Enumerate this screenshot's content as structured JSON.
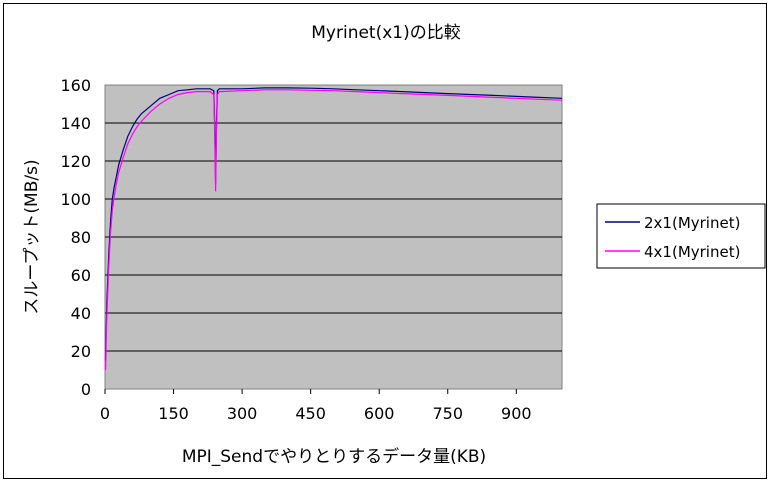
{
  "chart_data": {
    "type": "line",
    "title": "Myrinet(x1)の比較",
    "xlabel": "MPI_Sendでやりとりするデータ量(KB)",
    "ylabel": "スループット(MB/s)",
    "xlim": [
      0,
      1000
    ],
    "ylim": [
      0,
      160
    ],
    "x_ticks": [
      0,
      150,
      300,
      450,
      600,
      750,
      900
    ],
    "y_ticks": [
      0,
      20,
      40,
      60,
      80,
      100,
      120,
      140,
      160
    ],
    "grid": "horizontal",
    "plot_background": "#c0c0c0",
    "legend_position": "right",
    "series": [
      {
        "name": "2x1(Myrinet)",
        "color": "#000080",
        "points": [
          [
            1,
            15
          ],
          [
            4,
            45
          ],
          [
            8,
            70
          ],
          [
            12,
            88
          ],
          [
            16,
            100
          ],
          [
            20,
            106
          ],
          [
            25,
            112
          ],
          [
            30,
            118
          ],
          [
            40,
            126
          ],
          [
            50,
            133
          ],
          [
            60,
            138
          ],
          [
            70,
            142
          ],
          [
            80,
            145
          ],
          [
            100,
            149
          ],
          [
            120,
            153
          ],
          [
            140,
            155
          ],
          [
            160,
            157
          ],
          [
            180,
            157.5
          ],
          [
            200,
            158
          ],
          [
            230,
            158
          ],
          [
            238,
            157
          ],
          [
            240,
            140
          ],
          [
            242,
            108
          ],
          [
            244,
            140
          ],
          [
            246,
            157
          ],
          [
            250,
            158
          ],
          [
            300,
            158
          ],
          [
            350,
            158.5
          ],
          [
            400,
            158.5
          ],
          [
            450,
            158.3
          ],
          [
            500,
            158
          ],
          [
            550,
            157.5
          ],
          [
            600,
            157
          ],
          [
            650,
            156.5
          ],
          [
            700,
            156
          ],
          [
            750,
            155.5
          ],
          [
            800,
            155
          ],
          [
            850,
            154.5
          ],
          [
            900,
            154
          ],
          [
            950,
            153.5
          ],
          [
            1000,
            153
          ]
        ]
      },
      {
        "name": "4x1(Myrinet)",
        "color": "#ff00ff",
        "points": [
          [
            1,
            10
          ],
          [
            4,
            38
          ],
          [
            8,
            64
          ],
          [
            12,
            82
          ],
          [
            16,
            94
          ],
          [
            20,
            101
          ],
          [
            25,
            108
          ],
          [
            30,
            114
          ],
          [
            40,
            122
          ],
          [
            50,
            129
          ],
          [
            60,
            134
          ],
          [
            70,
            138
          ],
          [
            80,
            141
          ],
          [
            100,
            146
          ],
          [
            120,
            150
          ],
          [
            140,
            153
          ],
          [
            160,
            155
          ],
          [
            180,
            156
          ],
          [
            200,
            156.5
          ],
          [
            230,
            156.5
          ],
          [
            238,
            155
          ],
          [
            240,
            135
          ],
          [
            242,
            104
          ],
          [
            244,
            135
          ],
          [
            246,
            155
          ],
          [
            250,
            156.5
          ],
          [
            300,
            157
          ],
          [
            350,
            157.5
          ],
          [
            400,
            157.5
          ],
          [
            450,
            157.2
          ],
          [
            500,
            157
          ],
          [
            550,
            156.5
          ],
          [
            600,
            156
          ],
          [
            650,
            155.5
          ],
          [
            700,
            155
          ],
          [
            750,
            154.5
          ],
          [
            800,
            154
          ],
          [
            850,
            153.5
          ],
          [
            900,
            153
          ],
          [
            950,
            152.5
          ],
          [
            1000,
            152
          ]
        ]
      }
    ]
  }
}
